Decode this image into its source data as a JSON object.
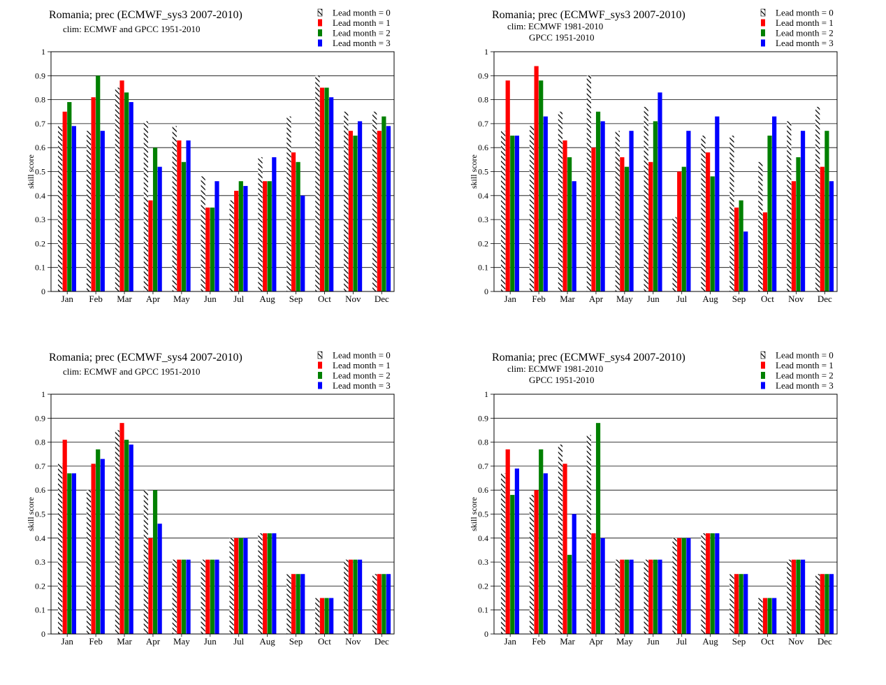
{
  "legend": [
    "Lead month = 0",
    "Lead month = 1",
    "Lead month = 2",
    "Lead month = 3"
  ],
  "colors": {
    "lead0": "hatched",
    "lead1": "#ff0000",
    "lead2": "#008000",
    "lead3": "#0000ff"
  },
  "chart_data": [
    {
      "type": "bar",
      "title": "Romania; prec (ECMWF_sys3 2007-2010)",
      "subtitle": [
        "clim: ECMWF and GPCC 1951-2010"
      ],
      "ylabel": "skill  score",
      "ylim": [
        0,
        1
      ],
      "yticks": [
        "0",
        "0.1",
        "0.2",
        "0.3",
        "0.4",
        "0.5",
        "0.6",
        "0.7",
        "0.8",
        "0.9",
        "1"
      ],
      "grid": true,
      "legend_position": "top-right",
      "categories": [
        "Jan",
        "Feb",
        "Mar",
        "Apr",
        "May",
        "Jun",
        "Jul",
        "Aug",
        "Sep",
        "Oct",
        "Nov",
        "Dec"
      ],
      "series": [
        {
          "name": "Lead month = 0",
          "values": [
            0.69,
            0.67,
            0.85,
            0.71,
            0.69,
            0.48,
            0.38,
            0.56,
            0.73,
            0.9,
            0.75,
            0.75
          ]
        },
        {
          "name": "Lead month = 1",
          "values": [
            0.75,
            0.81,
            0.88,
            0.38,
            0.63,
            0.35,
            0.42,
            0.46,
            0.58,
            0.85,
            0.67,
            0.67
          ]
        },
        {
          "name": "Lead month = 2",
          "values": [
            0.79,
            0.9,
            0.83,
            0.6,
            0.54,
            0.35,
            0.46,
            0.46,
            0.54,
            0.85,
            0.65,
            0.73
          ]
        },
        {
          "name": "Lead month = 3",
          "values": [
            0.69,
            0.67,
            0.79,
            0.52,
            0.63,
            0.46,
            0.44,
            0.56,
            0.4,
            0.81,
            0.71,
            0.69
          ]
        }
      ]
    },
    {
      "type": "bar",
      "title": "Romania; prec (ECMWF_sys3 2007-2010)",
      "subtitle": [
        "clim: ECMWF 1981-2010",
        "GPCC 1951-2010"
      ],
      "ylabel": "skill  score",
      "ylim": [
        0,
        1
      ],
      "yticks": [
        "0",
        "0.1",
        "0.2",
        "0.3",
        "0.4",
        "0.5",
        "0.6",
        "0.7",
        "0.8",
        "0.9",
        "1"
      ],
      "grid": true,
      "legend_position": "top-right",
      "categories": [
        "Jan",
        "Feb",
        "Mar",
        "Apr",
        "May",
        "Jun",
        "Jul",
        "Aug",
        "Sep",
        "Oct",
        "Nov",
        "Dec"
      ],
      "series": [
        {
          "name": "Lead month = 0",
          "values": [
            0.67,
            0.69,
            0.75,
            0.9,
            0.67,
            0.77,
            0.31,
            0.65,
            0.65,
            0.54,
            0.71,
            0.77
          ]
        },
        {
          "name": "Lead month = 1",
          "values": [
            0.88,
            0.94,
            0.63,
            0.6,
            0.56,
            0.54,
            0.5,
            0.58,
            0.35,
            0.33,
            0.46,
            0.52
          ]
        },
        {
          "name": "Lead month = 2",
          "values": [
            0.65,
            0.88,
            0.56,
            0.75,
            0.52,
            0.71,
            0.52,
            0.48,
            0.38,
            0.65,
            0.56,
            0.67
          ]
        },
        {
          "name": "Lead month = 3",
          "values": [
            0.65,
            0.73,
            0.46,
            0.71,
            0.67,
            0.83,
            0.67,
            0.73,
            0.25,
            0.73,
            0.67,
            0.46
          ]
        }
      ]
    },
    {
      "type": "bar",
      "title": "Romania; prec (ECMWF_sys4 2007-2010)",
      "subtitle": [
        "clim: ECMWF and GPCC 1951-2010"
      ],
      "ylabel": "skill  score",
      "ylim": [
        0,
        1
      ],
      "yticks": [
        "0",
        "0.1",
        "0.2",
        "0.3",
        "0.4",
        "0.5",
        "0.6",
        "0.7",
        "0.8",
        "0.9",
        "1"
      ],
      "grid": true,
      "legend_position": "top-right",
      "categories": [
        "Jan",
        "Feb",
        "Mar",
        "Apr",
        "May",
        "Jun",
        "Jul",
        "Aug",
        "Sep",
        "Oct",
        "Nov",
        "Dec"
      ],
      "series": [
        {
          "name": "Lead month = 0",
          "values": [
            0.71,
            0.6,
            0.85,
            0.6,
            0.31,
            0.31,
            0.4,
            0.42,
            0.25,
            0.15,
            0.31,
            0.25
          ]
        },
        {
          "name": "Lead month = 1",
          "values": [
            0.81,
            0.71,
            0.88,
            0.4,
            0.31,
            0.31,
            0.4,
            0.42,
            0.25,
            0.15,
            0.31,
            0.25
          ]
        },
        {
          "name": "Lead month = 2",
          "values": [
            0.67,
            0.77,
            0.81,
            0.6,
            0.31,
            0.31,
            0.4,
            0.42,
            0.25,
            0.15,
            0.31,
            0.25
          ]
        },
        {
          "name": "Lead month = 3",
          "values": [
            0.67,
            0.73,
            0.79,
            0.46,
            0.31,
            0.31,
            0.4,
            0.42,
            0.25,
            0.15,
            0.31,
            0.25
          ]
        }
      ]
    },
    {
      "type": "bar",
      "title": "Romania; prec (ECMWF_sys4 2007-2010)",
      "subtitle": [
        "clim: ECMWF 1981-2010",
        "GPCC 1951-2010"
      ],
      "ylabel": "skill  score",
      "ylim": [
        0,
        1
      ],
      "yticks": [
        "0",
        "0.1",
        "0.2",
        "0.3",
        "0.4",
        "0.5",
        "0.6",
        "0.7",
        "0.8",
        "0.9",
        "1"
      ],
      "grid": true,
      "legend_position": "top-right",
      "categories": [
        "Jan",
        "Feb",
        "Mar",
        "Apr",
        "May",
        "Jun",
        "Jul",
        "Aug",
        "Sep",
        "Oct",
        "Nov",
        "Dec"
      ],
      "series": [
        {
          "name": "Lead month = 0",
          "values": [
            0.67,
            0.58,
            0.79,
            0.83,
            0.31,
            0.31,
            0.4,
            0.42,
            0.25,
            0.15,
            0.31,
            0.25
          ]
        },
        {
          "name": "Lead month = 1",
          "values": [
            0.77,
            0.6,
            0.71,
            0.42,
            0.31,
            0.31,
            0.4,
            0.42,
            0.25,
            0.15,
            0.31,
            0.25
          ]
        },
        {
          "name": "Lead month = 2",
          "values": [
            0.58,
            0.77,
            0.33,
            0.88,
            0.31,
            0.31,
            0.4,
            0.42,
            0.25,
            0.15,
            0.31,
            0.25
          ]
        },
        {
          "name": "Lead month = 3",
          "values": [
            0.69,
            0.67,
            0.5,
            0.4,
            0.31,
            0.31,
            0.4,
            0.42,
            0.25,
            0.15,
            0.31,
            0.25
          ]
        }
      ]
    }
  ]
}
